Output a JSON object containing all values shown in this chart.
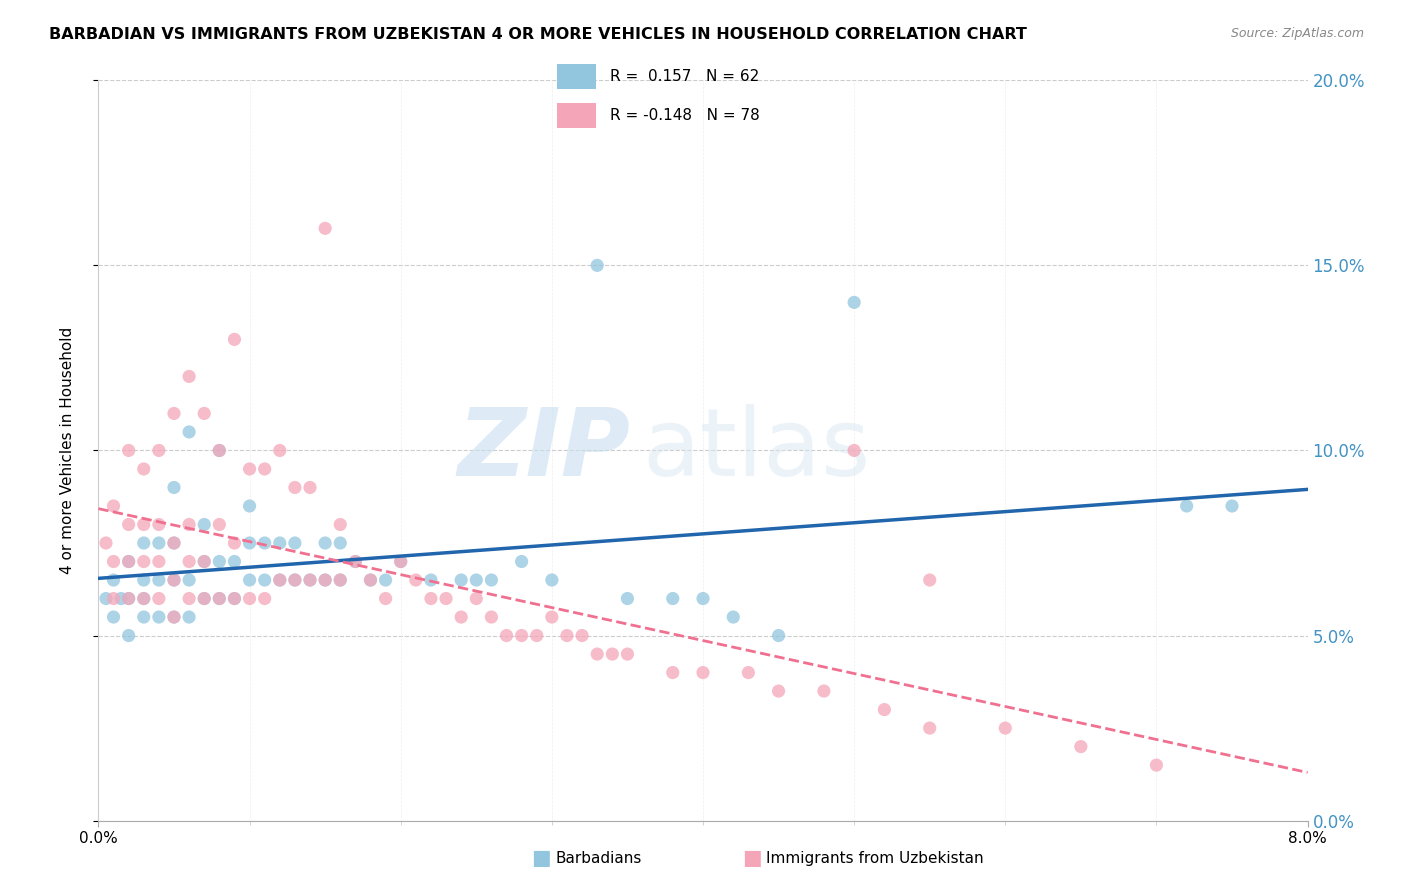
{
  "title": "BARBADIAN VS IMMIGRANTS FROM UZBEKISTAN 4 OR MORE VEHICLES IN HOUSEHOLD CORRELATION CHART",
  "source": "Source: ZipAtlas.com",
  "ylabel": "4 or more Vehicles in Household",
  "legend_label1": "Barbadians",
  "legend_label2": "Immigrants from Uzbekistan",
  "R1": 0.157,
  "N1": 62,
  "R2": -0.148,
  "N2": 78,
  "x_min": 0.0,
  "x_max": 0.08,
  "y_min": 0.0,
  "y_max": 0.2,
  "color_blue": "#92c5de",
  "color_pink": "#f4a6b8",
  "color_blue_line": "#2166ac",
  "color_pink_line": "#f07090",
  "color_right_axis": "#4393c3",
  "watermark_zip": "ZIP",
  "watermark_atlas": "atlas",
  "blue_x": [
    0.0005,
    0.001,
    0.001,
    0.0015,
    0.002,
    0.002,
    0.002,
    0.003,
    0.003,
    0.003,
    0.003,
    0.004,
    0.004,
    0.004,
    0.005,
    0.005,
    0.005,
    0.005,
    0.006,
    0.006,
    0.006,
    0.007,
    0.007,
    0.007,
    0.008,
    0.008,
    0.008,
    0.009,
    0.009,
    0.01,
    0.01,
    0.01,
    0.011,
    0.011,
    0.012,
    0.012,
    0.013,
    0.013,
    0.014,
    0.015,
    0.015,
    0.016,
    0.016,
    0.017,
    0.018,
    0.019,
    0.02,
    0.022,
    0.024,
    0.025,
    0.026,
    0.028,
    0.03,
    0.033,
    0.035,
    0.038,
    0.04,
    0.042,
    0.045,
    0.05,
    0.072,
    0.075
  ],
  "blue_y": [
    0.06,
    0.055,
    0.065,
    0.06,
    0.05,
    0.06,
    0.07,
    0.055,
    0.06,
    0.065,
    0.075,
    0.055,
    0.065,
    0.075,
    0.055,
    0.065,
    0.075,
    0.09,
    0.055,
    0.065,
    0.105,
    0.06,
    0.07,
    0.08,
    0.06,
    0.07,
    0.1,
    0.06,
    0.07,
    0.065,
    0.075,
    0.085,
    0.065,
    0.075,
    0.065,
    0.075,
    0.065,
    0.075,
    0.065,
    0.065,
    0.075,
    0.065,
    0.075,
    0.07,
    0.065,
    0.065,
    0.07,
    0.065,
    0.065,
    0.065,
    0.065,
    0.07,
    0.065,
    0.15,
    0.06,
    0.06,
    0.06,
    0.055,
    0.05,
    0.14,
    0.085,
    0.085
  ],
  "pink_x": [
    0.0005,
    0.001,
    0.001,
    0.001,
    0.002,
    0.002,
    0.002,
    0.002,
    0.003,
    0.003,
    0.003,
    0.003,
    0.004,
    0.004,
    0.004,
    0.004,
    0.005,
    0.005,
    0.005,
    0.005,
    0.006,
    0.006,
    0.006,
    0.006,
    0.007,
    0.007,
    0.007,
    0.008,
    0.008,
    0.008,
    0.009,
    0.009,
    0.009,
    0.01,
    0.01,
    0.011,
    0.011,
    0.012,
    0.012,
    0.013,
    0.013,
    0.014,
    0.014,
    0.015,
    0.015,
    0.016,
    0.016,
    0.017,
    0.018,
    0.019,
    0.02,
    0.021,
    0.022,
    0.023,
    0.024,
    0.025,
    0.026,
    0.027,
    0.028,
    0.029,
    0.03,
    0.031,
    0.032,
    0.033,
    0.034,
    0.035,
    0.038,
    0.04,
    0.043,
    0.045,
    0.048,
    0.052,
    0.055,
    0.06,
    0.065,
    0.07,
    0.05,
    0.055
  ],
  "pink_y": [
    0.075,
    0.06,
    0.07,
    0.085,
    0.06,
    0.07,
    0.08,
    0.1,
    0.06,
    0.07,
    0.08,
    0.095,
    0.06,
    0.07,
    0.08,
    0.1,
    0.055,
    0.065,
    0.075,
    0.11,
    0.06,
    0.07,
    0.08,
    0.12,
    0.06,
    0.07,
    0.11,
    0.06,
    0.08,
    0.1,
    0.06,
    0.075,
    0.13,
    0.06,
    0.095,
    0.06,
    0.095,
    0.065,
    0.1,
    0.065,
    0.09,
    0.065,
    0.09,
    0.065,
    0.16,
    0.065,
    0.08,
    0.07,
    0.065,
    0.06,
    0.07,
    0.065,
    0.06,
    0.06,
    0.055,
    0.06,
    0.055,
    0.05,
    0.05,
    0.05,
    0.055,
    0.05,
    0.05,
    0.045,
    0.045,
    0.045,
    0.04,
    0.04,
    0.04,
    0.035,
    0.035,
    0.03,
    0.025,
    0.025,
    0.02,
    0.015,
    0.1,
    0.065
  ]
}
